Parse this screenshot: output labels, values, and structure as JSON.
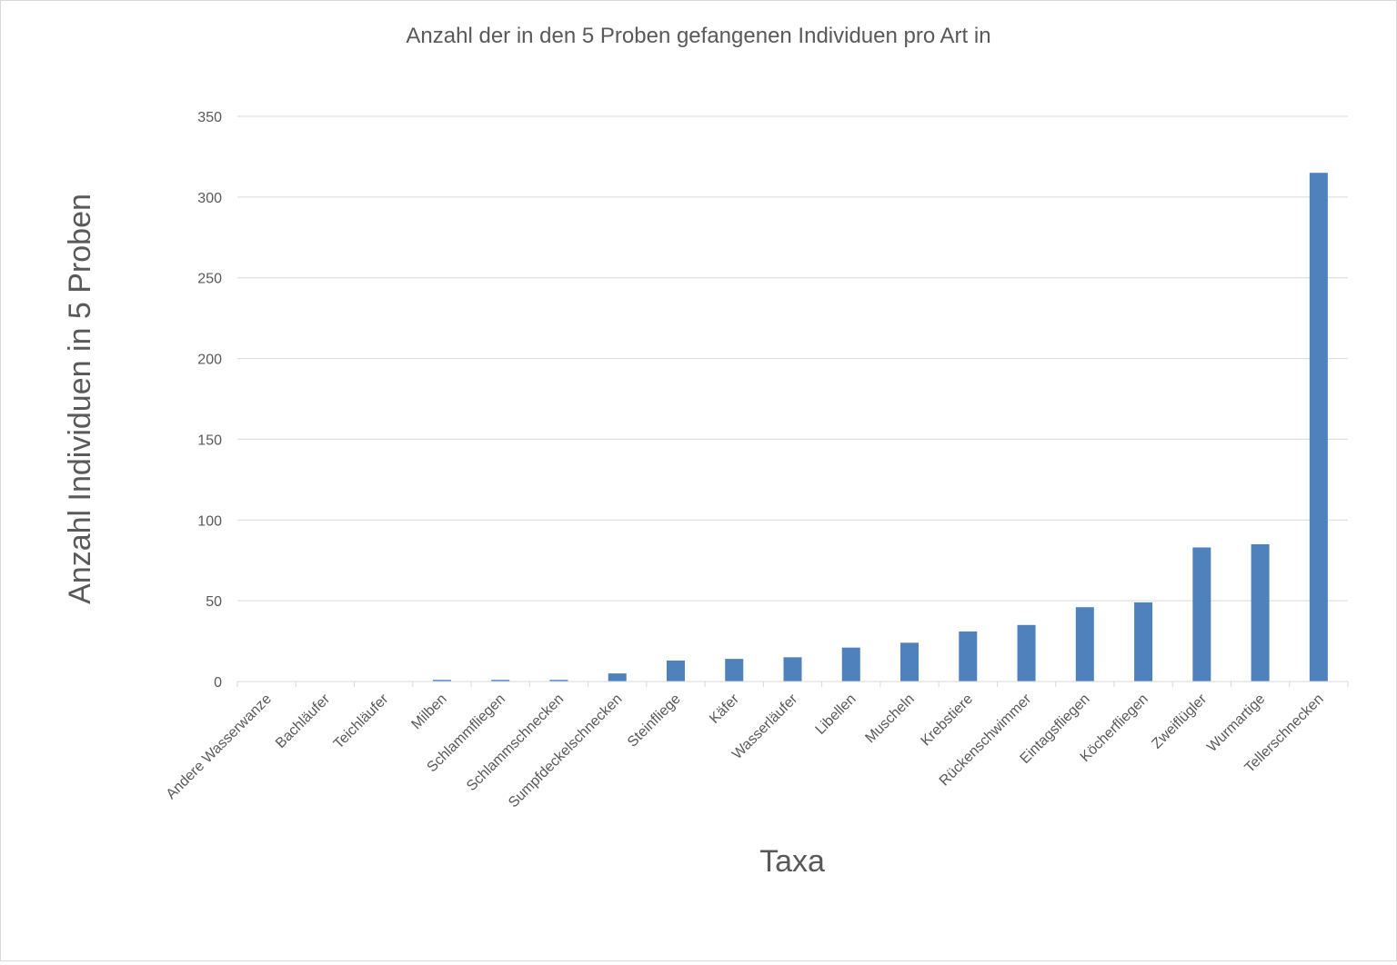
{
  "chart_data": {
    "type": "bar",
    "title": "Anzahl der in den 5 Proben gefangenen Individuen pro Art in",
    "xlabel": "Taxa",
    "ylabel": "Anzahl Individuen in 5 Proben",
    "ylim": [
      0,
      350
    ],
    "yticks": [
      0,
      50,
      100,
      150,
      200,
      250,
      300,
      350
    ],
    "grid": true,
    "bar_color": "#4f81bd",
    "categories": [
      "Andere Wasserwanze",
      "Bachläufer",
      "Teichläufer",
      "Milben",
      "Schlammfliegen",
      "Schlammschnecken",
      "Sumpfdeckelschnecken",
      "Steinfliege",
      "Käfer",
      "Wasserläufer",
      "Libellen",
      "Muscheln",
      "Krebstiere",
      "Rückenschwimmer",
      "Eintagsfliegen",
      "Köcherfliegen",
      "Zweiflügler",
      "Wurmartige",
      "Tellerschnecken"
    ],
    "values": [
      0,
      0,
      0,
      1,
      1,
      1,
      5,
      13,
      14,
      15,
      21,
      24,
      31,
      35,
      46,
      49,
      83,
      85,
      315
    ]
  }
}
